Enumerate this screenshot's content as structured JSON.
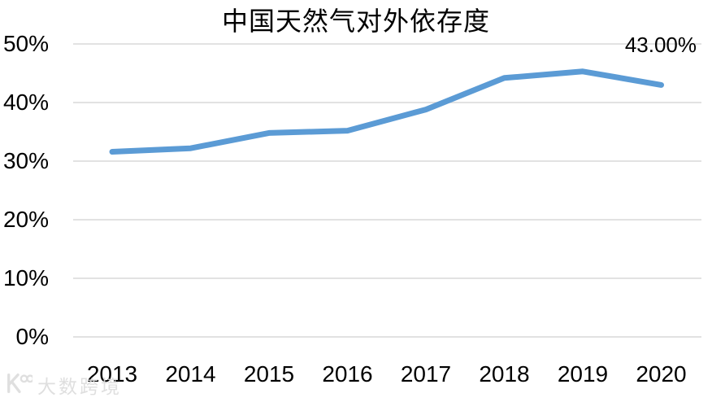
{
  "chart_data": {
    "type": "line",
    "title": "中国天然气对外依存度",
    "categories": [
      "2013",
      "2014",
      "2015",
      "2016",
      "2017",
      "2018",
      "2019",
      "2020"
    ],
    "series": [
      {
        "name": "中国天然气对外依存度",
        "values": [
          31.6,
          32.2,
          34.8,
          35.2,
          38.8,
          44.2,
          45.3,
          43.0
        ]
      }
    ],
    "end_label": "43.00%",
    "xlabel": "",
    "ylabel": "",
    "ylim": [
      0,
      50
    ],
    "ytick_step": 10,
    "ytick_labels": [
      "0%",
      "10%",
      "20%",
      "30%",
      "40%",
      "50%"
    ],
    "grid": true,
    "legend": "none",
    "colors": {
      "line": "#5B9BD5",
      "gridline": "#D9D9D9",
      "text": "#000000",
      "background": "#FFFFFF",
      "watermark": "#DCDCDC"
    }
  },
  "watermark": {
    "text": "大数跨境"
  }
}
